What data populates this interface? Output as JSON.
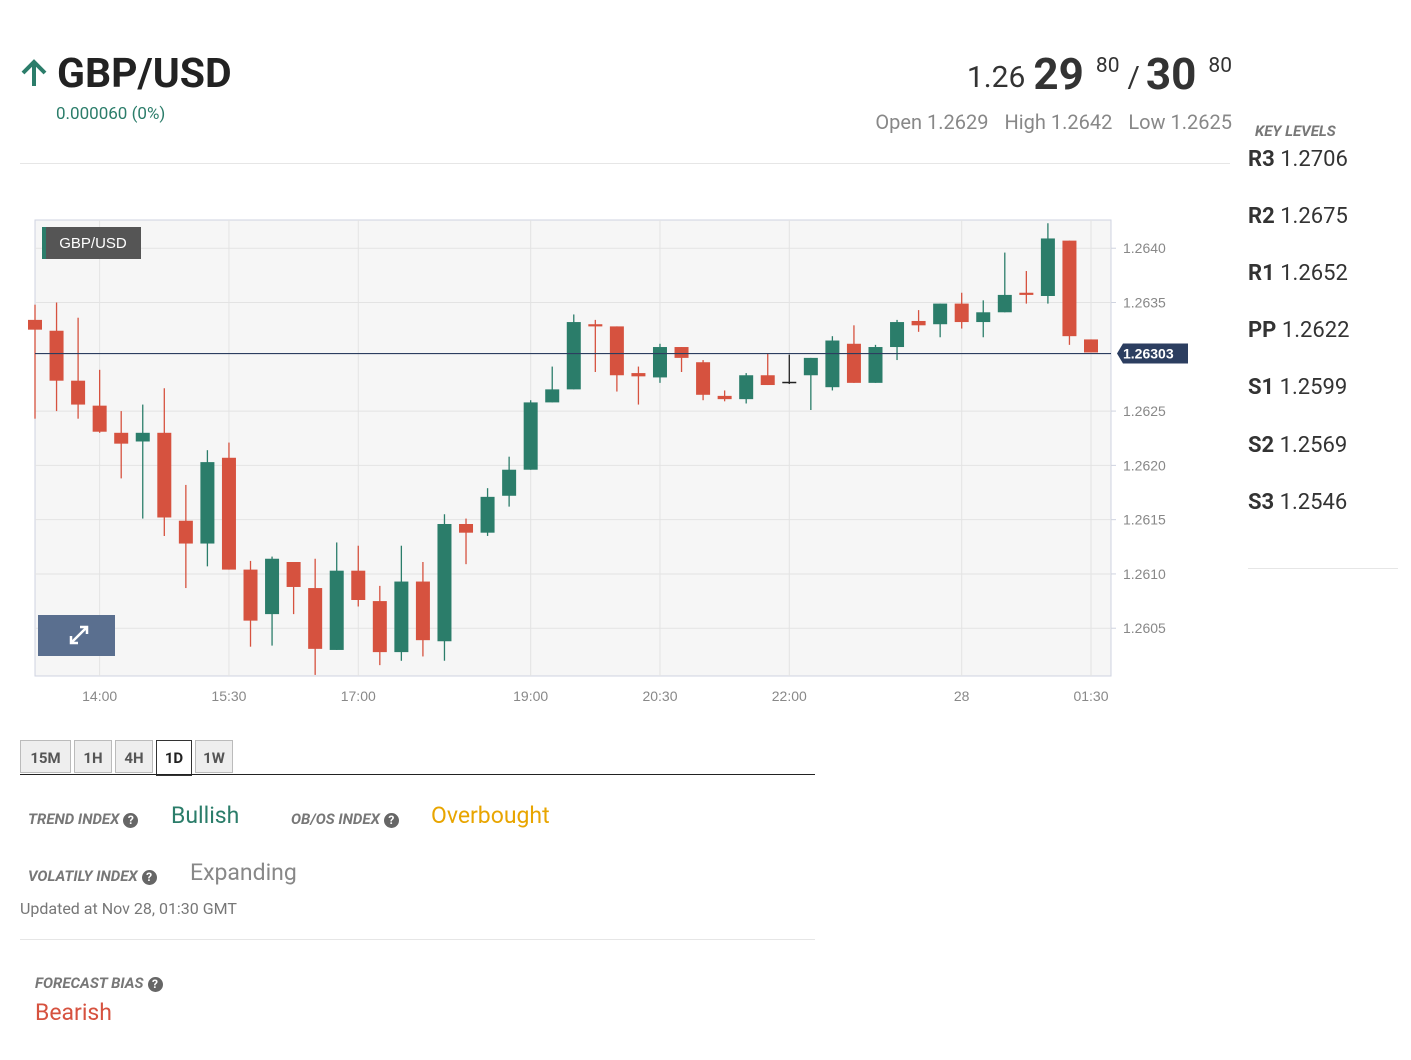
{
  "header": {
    "symbol": "GBP/USD",
    "change": "0.000060 (0%)",
    "bid": {
      "prefix": "1.26",
      "big": "29",
      "pip": "80"
    },
    "separator": "/",
    "ask": {
      "big": "30",
      "pip": "80"
    },
    "stats": [
      {
        "label": "Open",
        "value": "1.2629"
      },
      {
        "label": "High",
        "value": "1.2642"
      },
      {
        "label": "Low",
        "value": "1.2625"
      }
    ]
  },
  "key_levels": {
    "title": "KEY LEVELS",
    "items": [
      {
        "name": "R3",
        "value": "1.2706"
      },
      {
        "name": "R2",
        "value": "1.2675"
      },
      {
        "name": "R1",
        "value": "1.2652"
      },
      {
        "name": "PP",
        "value": "1.2622"
      },
      {
        "name": "S1",
        "value": "1.2599"
      },
      {
        "name": "S2",
        "value": "1.2569"
      },
      {
        "name": "S3",
        "value": "1.2546"
      }
    ]
  },
  "chart_data": {
    "type": "candlestick",
    "label": "GBP/USD",
    "categories": [
      null,
      null,
      null,
      "14:00",
      null,
      null,
      null,
      null,
      null,
      "15:30",
      null,
      null,
      null,
      null,
      null,
      "17:00",
      null,
      null,
      null,
      null,
      null,
      null,
      null,
      "19:00",
      null,
      null,
      null,
      null,
      null,
      "20:30",
      null,
      null,
      null,
      null,
      null,
      "22:00",
      null,
      null,
      null,
      null,
      null,
      null,
      null,
      "28",
      null,
      null,
      null,
      null,
      null,
      "01:30"
    ],
    "open": [
      1.26334,
      1.26324,
      1.26278,
      1.26255,
      1.2623,
      1.26222,
      1.2623,
      1.26149,
      1.26128,
      1.26207,
      1.26104,
      1.26063,
      1.26111,
      1.26087,
      1.2603,
      1.26103,
      1.26075,
      1.26028,
      1.26093,
      1.26038,
      1.26146,
      1.26138,
      1.26172,
      1.26196,
      1.26258,
      1.2627,
      1.2633,
      1.26328,
      1.26285,
      1.26281,
      1.26309,
      1.26295,
      1.26264,
      1.26261,
      1.26283,
      1.26277,
      1.26283,
      1.26272,
      1.26312,
      1.26276,
      1.26309,
      1.26333,
      1.2633,
      1.26349,
      1.26332,
      1.26341,
      1.26359,
      1.26356,
      1.26407,
      1.26316
    ],
    "high": [
      1.26348,
      1.2635,
      1.26336,
      1.26288,
      1.2625,
      1.26256,
      1.26271,
      1.26182,
      1.26214,
      1.26221,
      1.26112,
      1.26116,
      1.26111,
      1.26114,
      1.26129,
      1.26126,
      1.26089,
      1.26126,
      1.26111,
      1.26155,
      1.26151,
      1.26179,
      1.26208,
      1.2626,
      1.26291,
      1.26339,
      1.26334,
      1.26328,
      1.26291,
      1.26312,
      1.26309,
      1.26297,
      1.26269,
      1.26285,
      1.26303,
      1.26302,
      1.26299,
      1.26319,
      1.26329,
      1.26311,
      1.26334,
      1.26343,
      1.26349,
      1.26359,
      1.26352,
      1.26396,
      1.26379,
      1.26423,
      1.26407,
      1.26316
    ],
    "low": [
      1.26243,
      1.2625,
      1.26243,
      1.2623,
      1.26188,
      1.26151,
      1.26135,
      1.26087,
      1.26107,
      1.26104,
      1.26033,
      1.26034,
      1.26063,
      1.26007,
      1.2603,
      1.2607,
      1.26016,
      1.2602,
      1.26024,
      1.2602,
      1.26109,
      1.26135,
      1.26162,
      1.26196,
      1.26258,
      1.2627,
      1.26286,
      1.26268,
      1.26256,
      1.26276,
      1.26286,
      1.2626,
      1.26259,
      1.26257,
      1.26274,
      1.26275,
      1.26251,
      1.26269,
      1.26276,
      1.26276,
      1.26297,
      1.26323,
      1.26318,
      1.26326,
      1.26318,
      1.26341,
      1.26349,
      1.26349,
      1.26311,
      1.26304
    ],
    "close": [
      1.26325,
      1.26278,
      1.26256,
      1.26231,
      1.2622,
      1.2623,
      1.26152,
      1.26128,
      1.26203,
      1.26104,
      1.26057,
      1.26114,
      1.26088,
      1.26031,
      1.26103,
      1.26076,
      1.26028,
      1.26093,
      1.26039,
      1.26146,
      1.26138,
      1.26171,
      1.26196,
      1.26258,
      1.2627,
      1.26332,
      1.26328,
      1.26283,
      1.26282,
      1.26309,
      1.26299,
      1.26265,
      1.26261,
      1.26283,
      1.26274,
      1.26277,
      1.26299,
      1.26315,
      1.26276,
      1.26309,
      1.26332,
      1.26329,
      1.26349,
      1.26332,
      1.26341,
      1.26357,
      1.26357,
      1.26409,
      1.26319,
      1.26304
    ],
    "up_color": "#2b7d6a",
    "down_color": "#d6523f",
    "doji_color": "#222222",
    "ylim": [
      1.26006,
      1.26426
    ],
    "yticks": [
      1.2605,
      {
        "value": 1.261,
        "label": "1.2610"
      },
      1.2615,
      {
        "value": 1.262,
        "label": "1.2620"
      },
      1.2625,
      1.2635,
      {
        "value": 1.264,
        "label": "1.2640"
      }
    ],
    "current_price": 1.26303,
    "price_line_color": "#2c3e60",
    "grid": true
  },
  "tabs": {
    "items": [
      "15M",
      "1H",
      "4H",
      "1D",
      "1W"
    ],
    "active": 3
  },
  "indices": {
    "trend": {
      "label": "TREND INDEX",
      "value": "Bullish"
    },
    "obos": {
      "label": "OB/OS INDEX",
      "value": "Overbought"
    },
    "volatility": {
      "label": "VOLATILY INDEX",
      "value": "Expanding"
    },
    "updated": "Updated at Nov 28, 01:30 GMT"
  },
  "forecast": {
    "label": "FORECAST BIAS",
    "value": "Bearish"
  }
}
